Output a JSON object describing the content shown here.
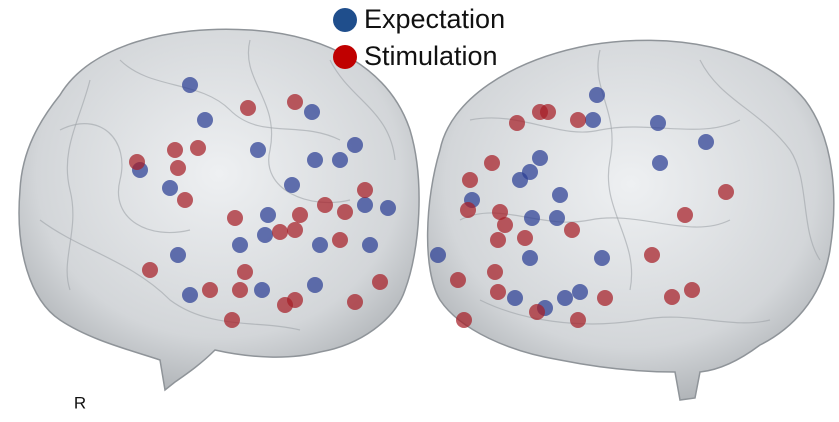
{
  "legend": {
    "items": [
      {
        "label": "Expectation",
        "color": "#1f4e8c"
      },
      {
        "label": "Stimulation",
        "color": "#c00000"
      }
    ]
  },
  "side_label": "R"
}
